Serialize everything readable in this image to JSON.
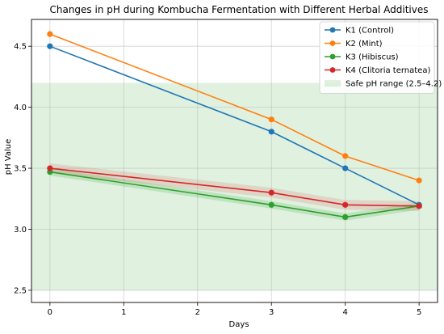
{
  "chart_data": {
    "type": "line",
    "title": "Changes in pH during Kombucha Fermentation with Different Herbal Additives",
    "xlabel": "Days",
    "ylabel": "pH Value",
    "xlim": [
      -0.25,
      5.25
    ],
    "ylim": [
      2.4,
      4.72
    ],
    "x_ticks": [
      0,
      1,
      2,
      3,
      4,
      5
    ],
    "y_ticks": [
      2.5,
      3.0,
      3.5,
      4.0,
      4.5
    ],
    "y_tick_labels": [
      "2.5",
      "3.0",
      "3.5",
      "4.0",
      "4.5"
    ],
    "grid": true,
    "legend_position": "top-right",
    "x": [
      0,
      3,
      4,
      5
    ],
    "series": [
      {
        "name": "K1 (Control)",
        "color": "#1f77b4",
        "values": [
          4.5,
          3.8,
          3.5,
          3.2
        ]
      },
      {
        "name": "K2 (Mint)",
        "color": "#ff7f0e",
        "values": [
          4.6,
          3.9,
          3.6,
          3.4
        ]
      },
      {
        "name": "K3 (Hibiscus)",
        "color": "#2ca02c",
        "values": [
          3.47,
          3.2,
          3.1,
          3.19
        ]
      },
      {
        "name": "K4 (Clitoria ternatea)",
        "color": "#d62728",
        "values": [
          3.5,
          3.3,
          3.2,
          3.19
        ]
      }
    ],
    "shaded_band": {
      "name": "Safe pH range (2.5–4.2)",
      "y_range": [
        2.5,
        4.2
      ],
      "color": "#2ca02c",
      "opacity": 0.15
    },
    "series_bands": [
      {
        "series": "K3 (Hibiscus)",
        "lower": [
          3.44,
          3.17,
          3.07,
          3.16
        ],
        "upper": [
          3.5,
          3.23,
          3.13,
          3.22
        ],
        "color": "#2ca02c",
        "opacity": 0.18
      },
      {
        "series": "K4 (Clitoria ternatea)",
        "lower": [
          3.46,
          3.26,
          3.16,
          3.15
        ],
        "upper": [
          3.54,
          3.34,
          3.24,
          3.23
        ],
        "color": "#d62728",
        "opacity": 0.14
      }
    ]
  }
}
